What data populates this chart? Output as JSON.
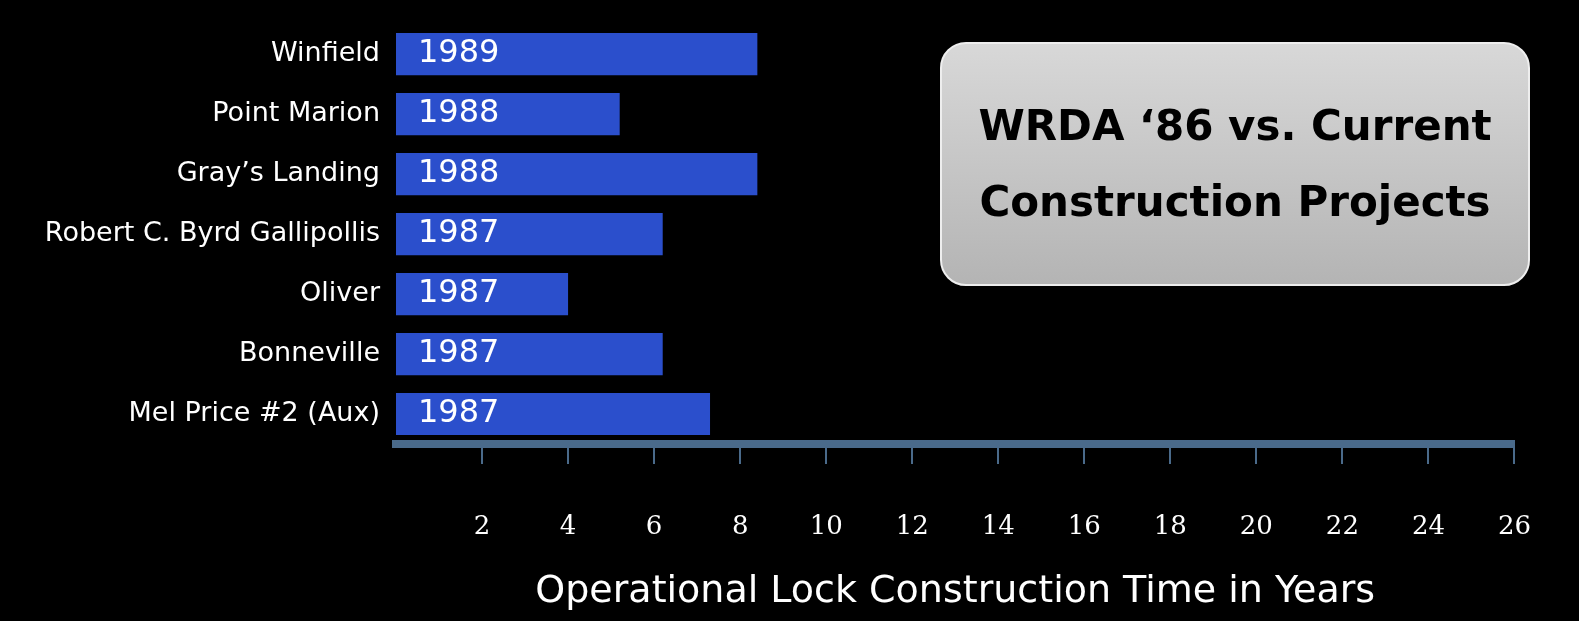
{
  "chart_data": {
    "type": "bar",
    "orientation": "horizontal",
    "title": "WRDA ‘86 vs. Current Construction Projects",
    "xlabel": "Operational Lock Construction Time in Years",
    "categories": [
      "Winfield",
      "Point Marion",
      "Gray’s Landing",
      "Robert C. Byrd Gallipollis",
      "Oliver",
      "Bonneville",
      "Mel Price #2 (Aux)"
    ],
    "values": [
      8.4,
      5.2,
      8.4,
      6.2,
      4.0,
      6.2,
      7.3
    ],
    "annotations": [
      {
        "text": "1989",
        "y": "Winfield"
      },
      {
        "text": "1988",
        "y": "Point Marion"
      },
      {
        "text": "1988",
        "y": "Gray’s Landing"
      },
      {
        "text": "1987",
        "y": "Robert C. Byrd Gallipollis"
      },
      {
        "text": "1987",
        "y": "Oliver"
      },
      {
        "text": "1987",
        "y": "Bonneville"
      },
      {
        "text": "1987",
        "y": "Mel Price #2 (Aux)"
      }
    ],
    "color": "#2b4fcc",
    "xlim": [
      0,
      26
    ],
    "xticks": [
      2,
      4,
      6,
      8,
      10,
      12,
      14,
      16,
      18,
      20,
      22,
      24,
      26
    ],
    "grid": false,
    "legend": false
  }
}
